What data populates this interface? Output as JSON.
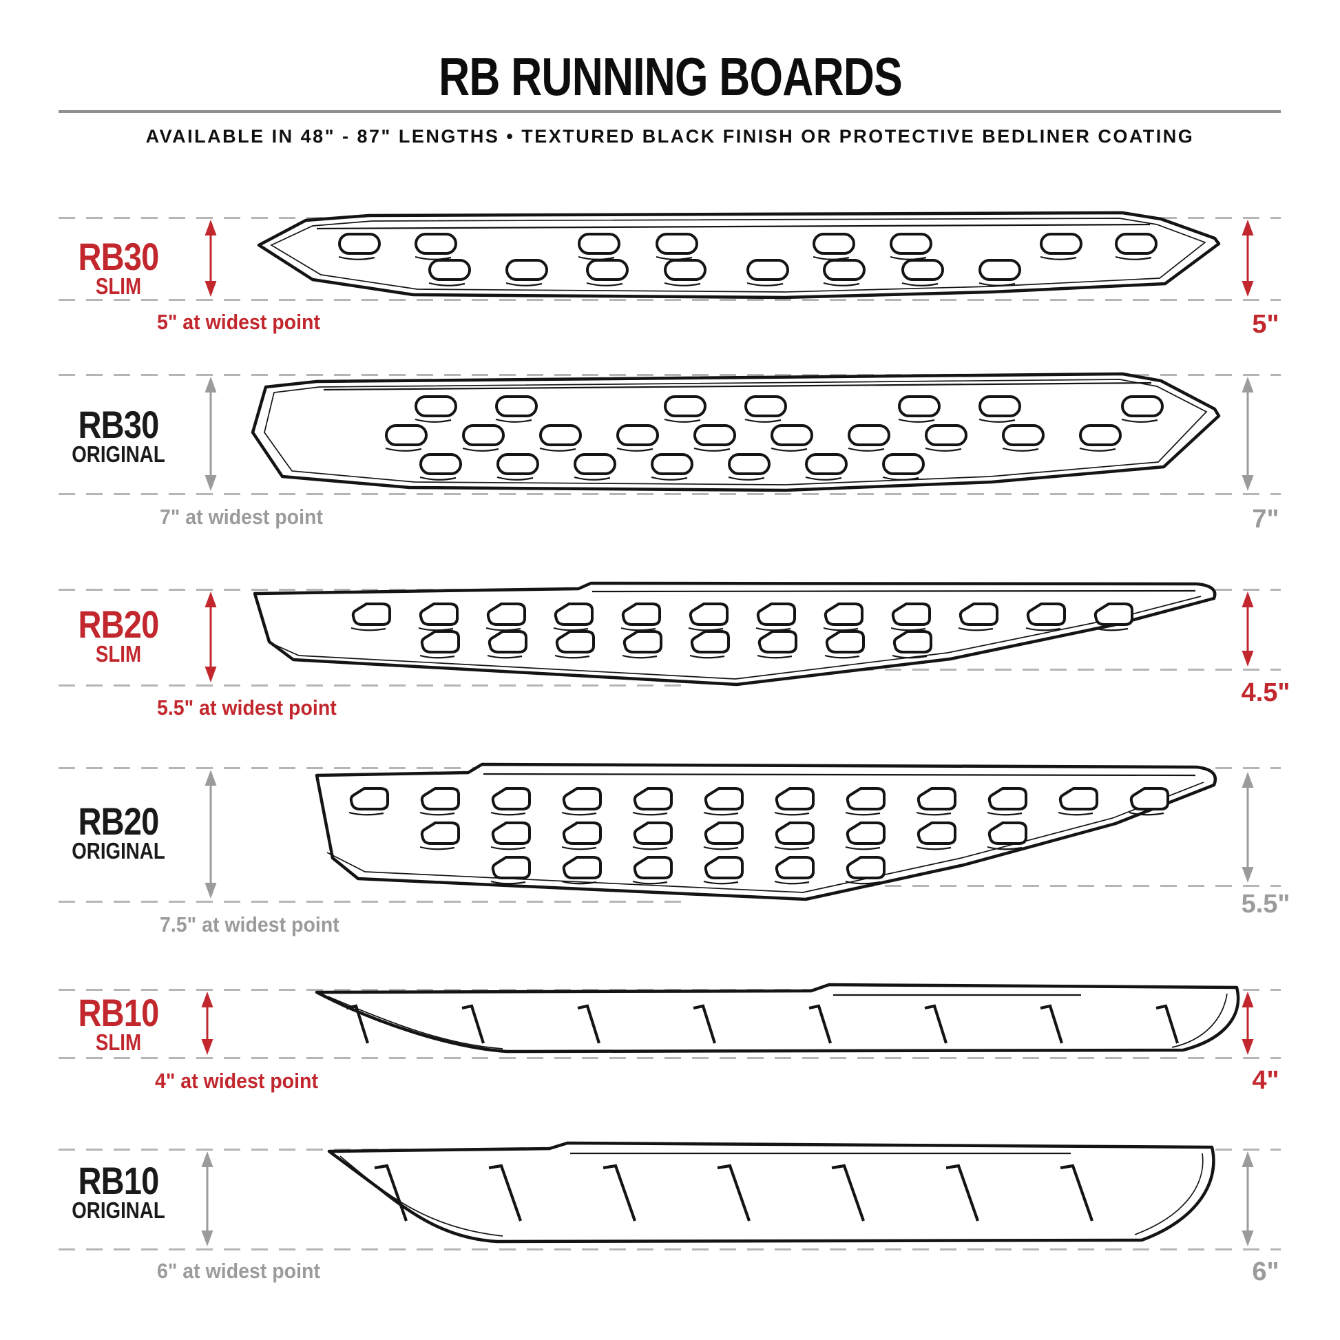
{
  "header": {
    "title": "RB RUNNING BOARDS",
    "subtitle": "AVAILABLE IN 48\" - 87\" LENGTHS  •  TEXTURED BLACK FINISH OR PROTECTIVE BEDLINER COATING"
  },
  "colors": {
    "accent_red": "#C2272E",
    "muted_gray": "#9B9B9B",
    "line_black": "#141414",
    "dash_gray": "#B5B5B5"
  },
  "rows": [
    {
      "model": "RB30",
      "variant": "SLIM",
      "accent": "red",
      "widest_label": "5\" at widest point",
      "right_label": "5\""
    },
    {
      "model": "RB30",
      "variant": "ORIGINAL",
      "accent": "gray",
      "widest_label": "7\" at widest point",
      "right_label": "7\""
    },
    {
      "model": "RB20",
      "variant": "SLIM",
      "accent": "red",
      "widest_label": "5.5\" at widest point",
      "right_label": "4.5\""
    },
    {
      "model": "RB20",
      "variant": "ORIGINAL",
      "accent": "gray",
      "widest_label": "7.5\" at widest point",
      "right_label": "5.5\""
    },
    {
      "model": "RB10",
      "variant": "SLIM",
      "accent": "red",
      "widest_label": "4\" at widest point",
      "right_label": "4\""
    },
    {
      "model": "RB10",
      "variant": "ORIGINAL",
      "accent": "gray",
      "widest_label": "6\" at widest point",
      "right_label": "6\""
    }
  ]
}
